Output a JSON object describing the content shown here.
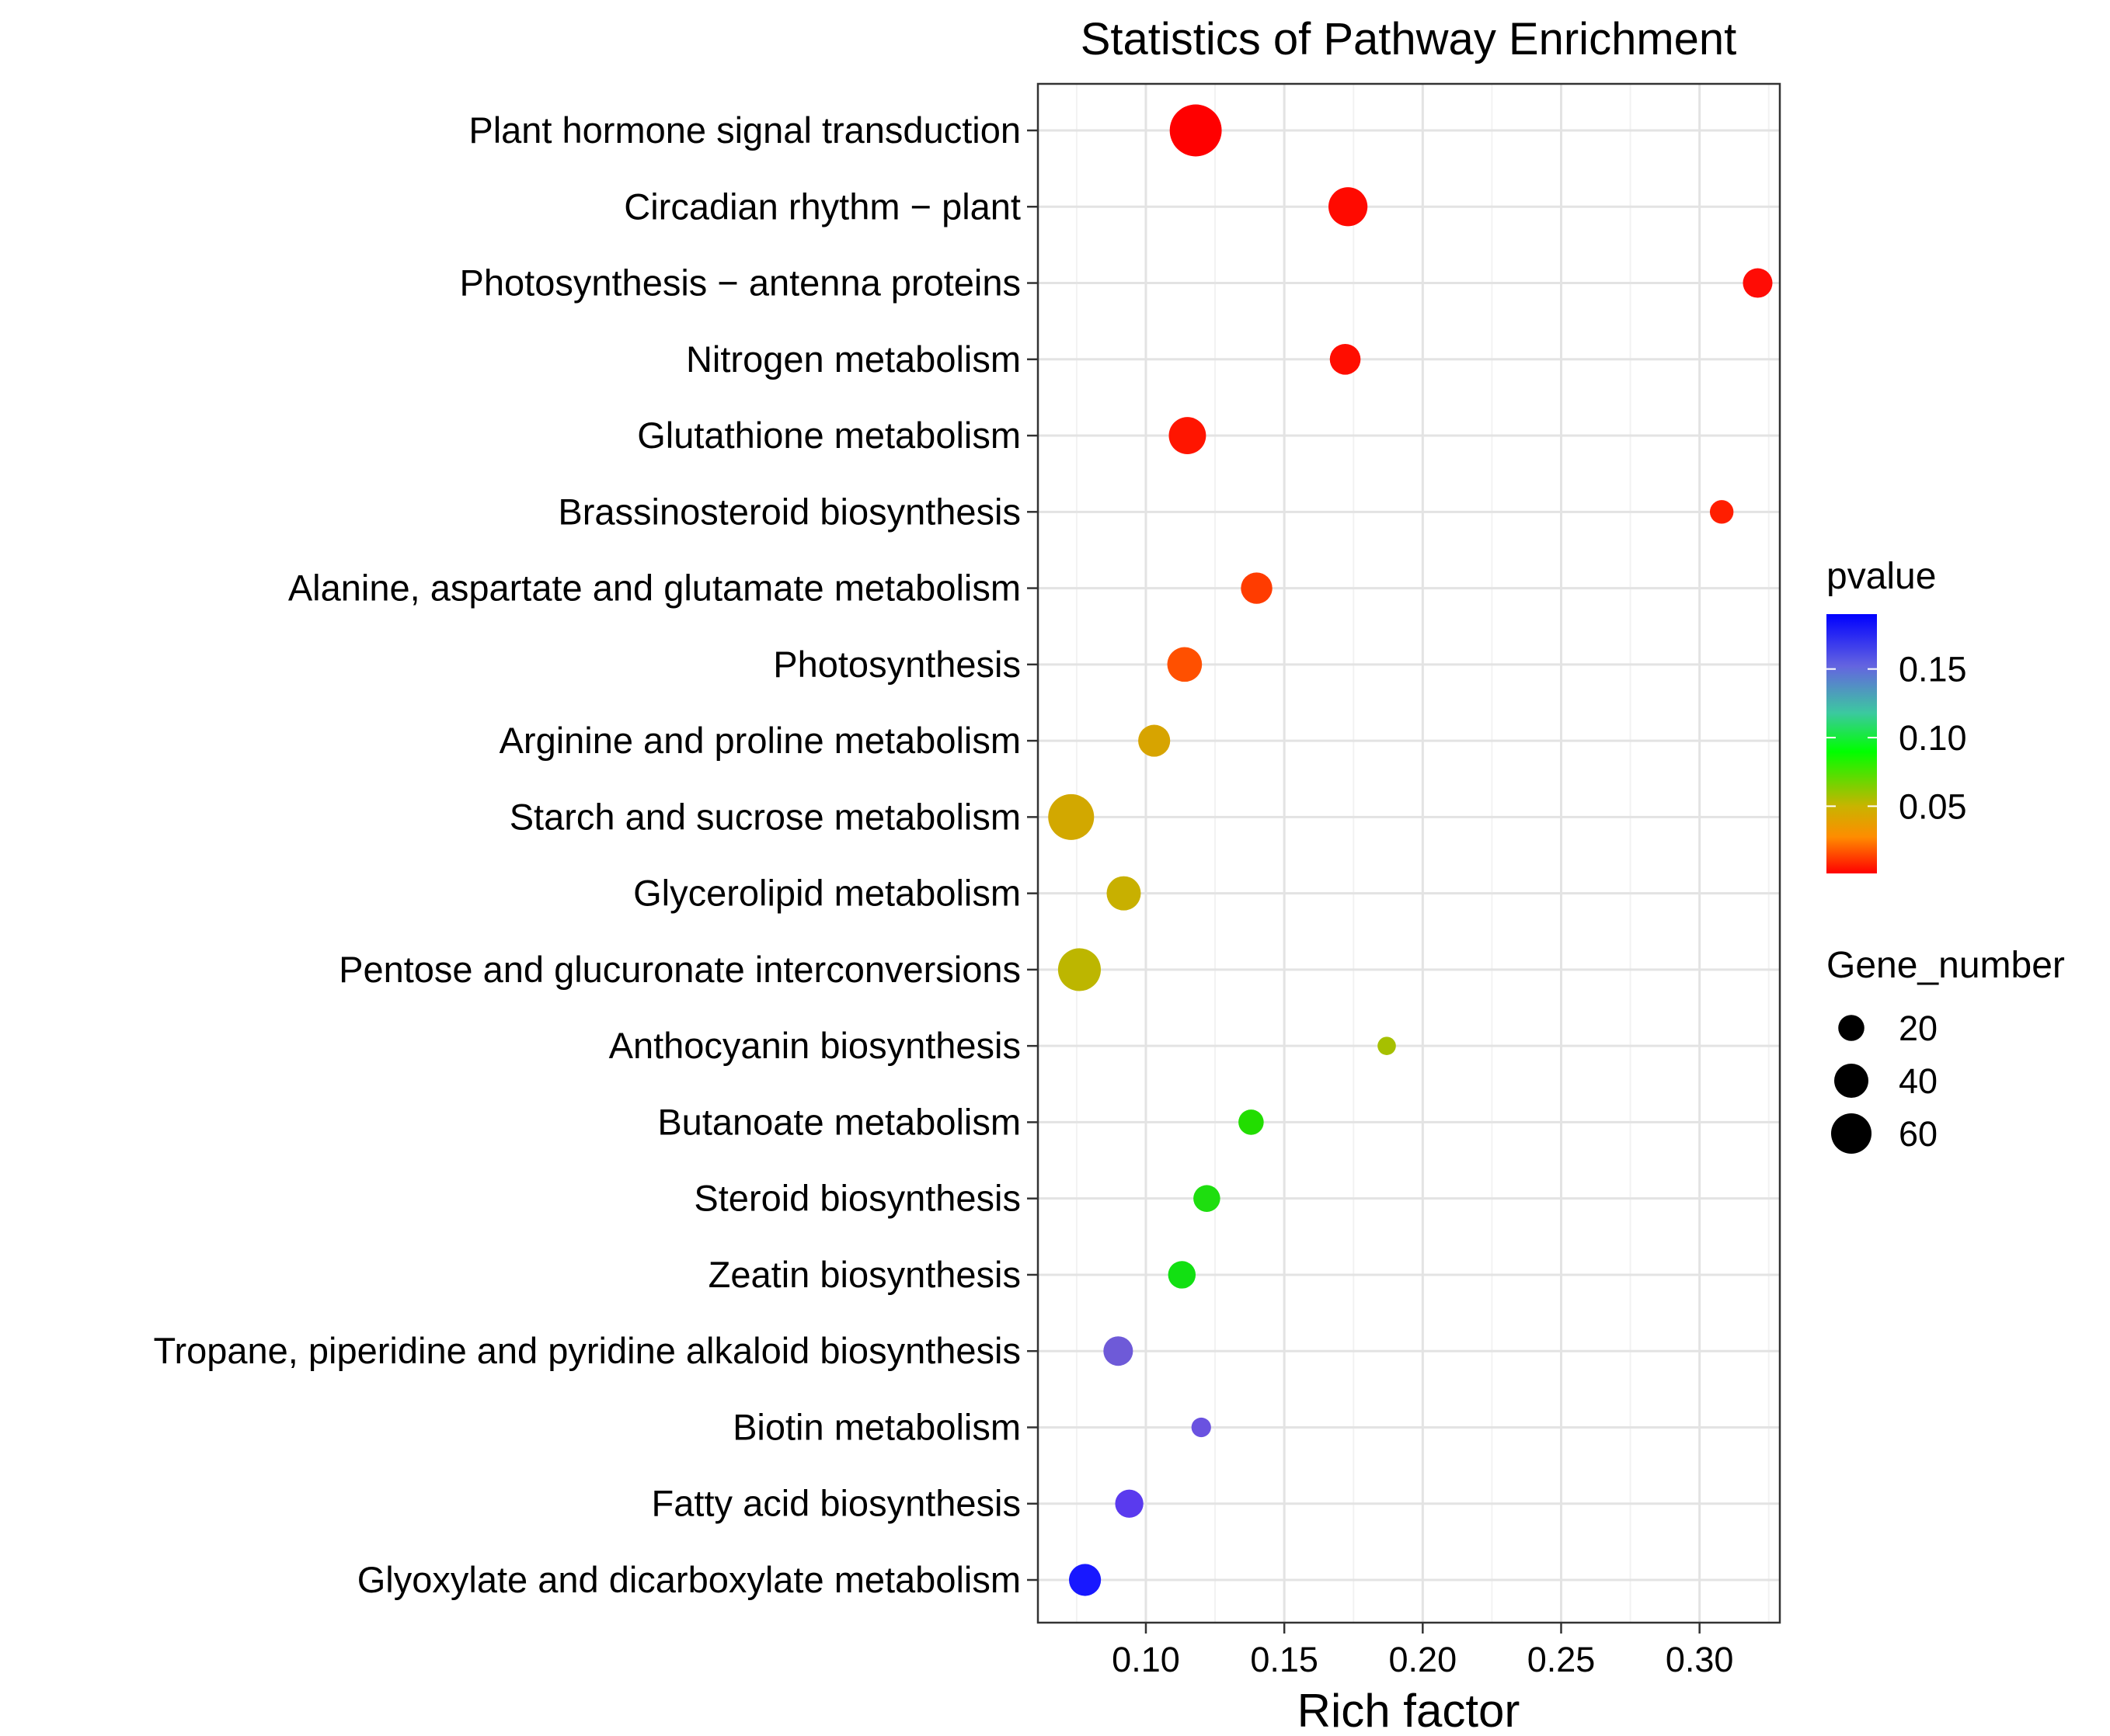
{
  "chart_data": {
    "type": "scatter",
    "title": "Statistics of Pathway Enrichment",
    "xlabel": "Rich factor",
    "ylabel": "",
    "xlim": [
      0.061,
      0.329
    ],
    "xticks": [
      0.1,
      0.15,
      0.2,
      0.25,
      0.3
    ],
    "xtick_labels": [
      "0.10",
      "0.15",
      "0.20",
      "0.25",
      "0.30"
    ],
    "grid": true,
    "points": [
      {
        "pathway": "Plant hormone signal transduction",
        "rich_factor": 0.118,
        "pvalue": 0.001,
        "gene_number": 70,
        "color": "#ff0000"
      },
      {
        "pathway": "Circadian rhythm − plant",
        "rich_factor": 0.173,
        "pvalue": 0.002,
        "gene_number": 35,
        "color": "#ff0a00"
      },
      {
        "pathway": "Photosynthesis − antenna proteins",
        "rich_factor": 0.321,
        "pvalue": 0.003,
        "gene_number": 17,
        "color": "#ff0c05"
      },
      {
        "pathway": "Nitrogen metabolism",
        "rich_factor": 0.172,
        "pvalue": 0.004,
        "gene_number": 19,
        "color": "#ff0d00"
      },
      {
        "pathway": "Glutathione metabolism",
        "rich_factor": 0.115,
        "pvalue": 0.006,
        "gene_number": 31,
        "color": "#ff1500"
      },
      {
        "pathway": "Brassinosteroid biosynthesis",
        "rich_factor": 0.308,
        "pvalue": 0.008,
        "gene_number": 9,
        "color": "#ff1e00"
      },
      {
        "pathway": "Alanine, aspartate and glutamate metabolism",
        "rich_factor": 0.14,
        "pvalue": 0.015,
        "gene_number": 20,
        "color": "#ff3c00"
      },
      {
        "pathway": "Photosynthesis",
        "rich_factor": 0.114,
        "pvalue": 0.02,
        "gene_number": 26,
        "color": "#ff5000"
      },
      {
        "pathway": "Arginine and proline metabolism",
        "rich_factor": 0.103,
        "pvalue": 0.045,
        "gene_number": 21,
        "color": "#d7a400"
      },
      {
        "pathway": "Starch and sucrose metabolism",
        "rich_factor": 0.073,
        "pvalue": 0.048,
        "gene_number": 52,
        "color": "#d2a800"
      },
      {
        "pathway": "Glycerolipid metabolism",
        "rich_factor": 0.092,
        "pvalue": 0.06,
        "gene_number": 25,
        "color": "#c8b000"
      },
      {
        "pathway": "Pentose and glucuronate interconversions",
        "rich_factor": 0.076,
        "pvalue": 0.065,
        "gene_number": 44,
        "color": "#bdb600"
      },
      {
        "pathway": "Anthocyanin biosynthesis",
        "rich_factor": 0.187,
        "pvalue": 0.07,
        "gene_number": 4,
        "color": "#a6c000"
      },
      {
        "pathway": "Butanoate metabolism",
        "rich_factor": 0.138,
        "pvalue": 0.095,
        "gene_number": 11,
        "color": "#22dd00"
      },
      {
        "pathway": "Steroid biosynthesis",
        "rich_factor": 0.122,
        "pvalue": 0.097,
        "gene_number": 13,
        "color": "#1ede0f"
      },
      {
        "pathway": "Zeatin biosynthesis",
        "rich_factor": 0.113,
        "pvalue": 0.099,
        "gene_number": 14,
        "color": "#12e012"
      },
      {
        "pathway": "Tropane, piperidine and pyridine alkaloid biosynthesis",
        "rich_factor": 0.09,
        "pvalue": 0.16,
        "gene_number": 17,
        "color": "#6e5ad8"
      },
      {
        "pathway": "Biotin metabolism",
        "rich_factor": 0.12,
        "pvalue": 0.165,
        "gene_number": 5,
        "color": "#6a52e0"
      },
      {
        "pathway": "Fatty acid biosynthesis",
        "rich_factor": 0.094,
        "pvalue": 0.175,
        "gene_number": 15,
        "color": "#5a3aee"
      },
      {
        "pathway": "Glyoxylate and dicarboxylate metabolism",
        "rich_factor": 0.078,
        "pvalue": 0.19,
        "gene_number": 21,
        "color": "#1818ff"
      }
    ],
    "legend_color": {
      "title": "pvalue",
      "ticks": [
        0.05,
        0.1,
        0.15
      ],
      "tick_labels": [
        "0.05",
        "0.10",
        "0.15"
      ],
      "range": [
        0.001,
        0.19
      ],
      "gradient": [
        "#ff0000",
        "#ff8c00",
        "#c8b400",
        "#00ff00",
        "#3cc8a0",
        "#6464e0",
        "#0000ff"
      ]
    },
    "legend_size": {
      "title": "Gene_number",
      "values": [
        20,
        40,
        60
      ],
      "labels": [
        "20",
        "40",
        "60"
      ]
    }
  }
}
